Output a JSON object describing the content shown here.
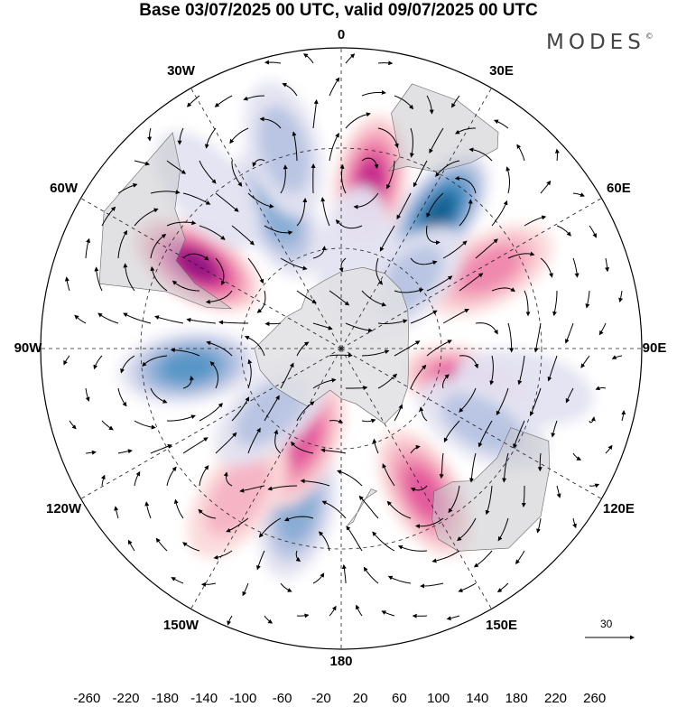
{
  "title": "Base 03/07/2025 00 UTC, valid 09/07/2025 00 UTC",
  "brand": "MODES",
  "brand_mark": "©",
  "longitude_labels": [
    {
      "id": "0",
      "text": "0",
      "deg": 0
    },
    {
      "id": "30e",
      "text": "30E",
      "deg": 30
    },
    {
      "id": "60e",
      "text": "60E",
      "deg": 60
    },
    {
      "id": "90e",
      "text": "90E",
      "deg": 90
    },
    {
      "id": "120e",
      "text": "120E",
      "deg": 120
    },
    {
      "id": "150e",
      "text": "150E",
      "deg": 150
    },
    {
      "id": "180",
      "text": "180",
      "deg": 180
    },
    {
      "id": "150w",
      "text": "150W",
      "deg": 210
    },
    {
      "id": "120w",
      "text": "120W",
      "deg": 240
    },
    {
      "id": "90w",
      "text": "90W",
      "deg": 270
    },
    {
      "id": "60w",
      "text": "60W",
      "deg": 300
    },
    {
      "id": "30w",
      "text": "30W",
      "deg": 330
    }
  ],
  "reference_vector": {
    "label": "30"
  },
  "colorbar": {
    "ticks": [
      "-260",
      "-220",
      "-180",
      "-140",
      "-100",
      "-60",
      "-20",
      "20",
      "60",
      "100",
      "140",
      "180",
      "220",
      "260"
    ],
    "colors": [
      "#0c3b5e",
      "#14608f",
      "#2d7fb6",
      "#5595c6",
      "#86acd4",
      "#b7c4e2",
      "#e3e3f1",
      "#ffffff",
      "#fbd9d9",
      "#f5b3c3",
      "#ef87ad",
      "#e2579c",
      "#c3288b",
      "#941683",
      "#5e0c72"
    ]
  },
  "anomalies": [
    {
      "lon": 10,
      "lat": -40,
      "value": 200
    },
    {
      "lon": 36,
      "lat": -40,
      "value": -220
    },
    {
      "lon": 62,
      "lat": -40,
      "value": 90
    },
    {
      "lon": 45,
      "lat": -62,
      "value": -80
    },
    {
      "lon": 106,
      "lat": -50,
      "value": 180
    },
    {
      "lon": 102,
      "lat": -34,
      "value": -40
    },
    {
      "lon": 118,
      "lat": -42,
      "value": -55
    },
    {
      "lon": 150,
      "lat": -40,
      "value": 130
    },
    {
      "lon": 195,
      "lat": -40,
      "value": -110
    },
    {
      "lon": 203,
      "lat": -60,
      "value": 140
    },
    {
      "lon": 215,
      "lat": -36,
      "value": 70
    },
    {
      "lon": 228,
      "lat": -62,
      "value": -60
    },
    {
      "lon": 263,
      "lat": -44,
      "value": -130
    },
    {
      "lon": 300,
      "lat": -40,
      "value": 210
    },
    {
      "lon": 335,
      "lat": -45,
      "value": -120
    },
    {
      "lon": 344,
      "lat": -28,
      "value": -70
    },
    {
      "lon": 8,
      "lat": -62,
      "value": -30
    },
    {
      "lon": 320,
      "lat": -28,
      "value": -40
    }
  ]
}
